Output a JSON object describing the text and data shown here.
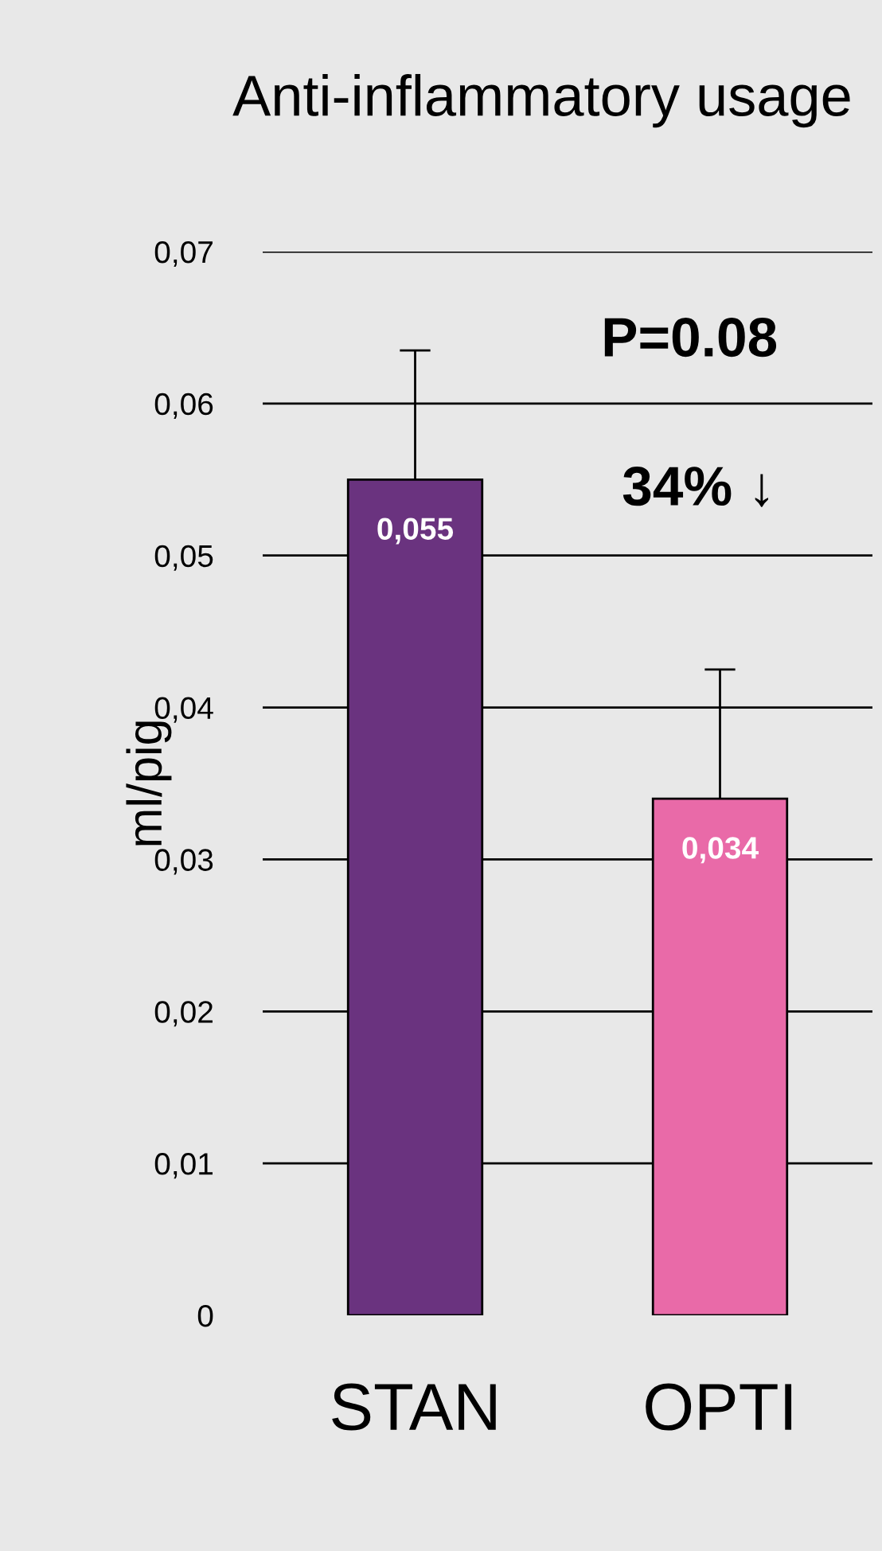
{
  "chart_data": {
    "type": "bar",
    "title": "Anti-inflammatory usage",
    "ylabel": "ml/pig",
    "categories": [
      "STAN",
      "OPTI"
    ],
    "values": [
      0.055,
      0.034
    ],
    "colors": [
      "#6a337f",
      "#e96aa8"
    ],
    "errors": [
      [
        0.055,
        0.0635
      ],
      [
        0.034,
        0.0425
      ]
    ],
    "ylim": [
      0,
      0.07
    ],
    "yticks": [
      {
        "value": 0,
        "label": "0"
      },
      {
        "value": 0.01,
        "label": "0,01"
      },
      {
        "value": 0.02,
        "label": "0,02"
      },
      {
        "value": 0.03,
        "label": "0,03"
      },
      {
        "value": 0.04,
        "label": "0,04"
      },
      {
        "value": 0.05,
        "label": "0,05"
      },
      {
        "value": 0.06,
        "label": "0,06"
      },
      {
        "value": 0.07,
        "label": "0,07"
      }
    ],
    "value_labels": [
      "0,055",
      "0,034"
    ],
    "annotations": [
      "P=0.08",
      "34% ↓"
    ],
    "grid": "y",
    "legend": false
  }
}
